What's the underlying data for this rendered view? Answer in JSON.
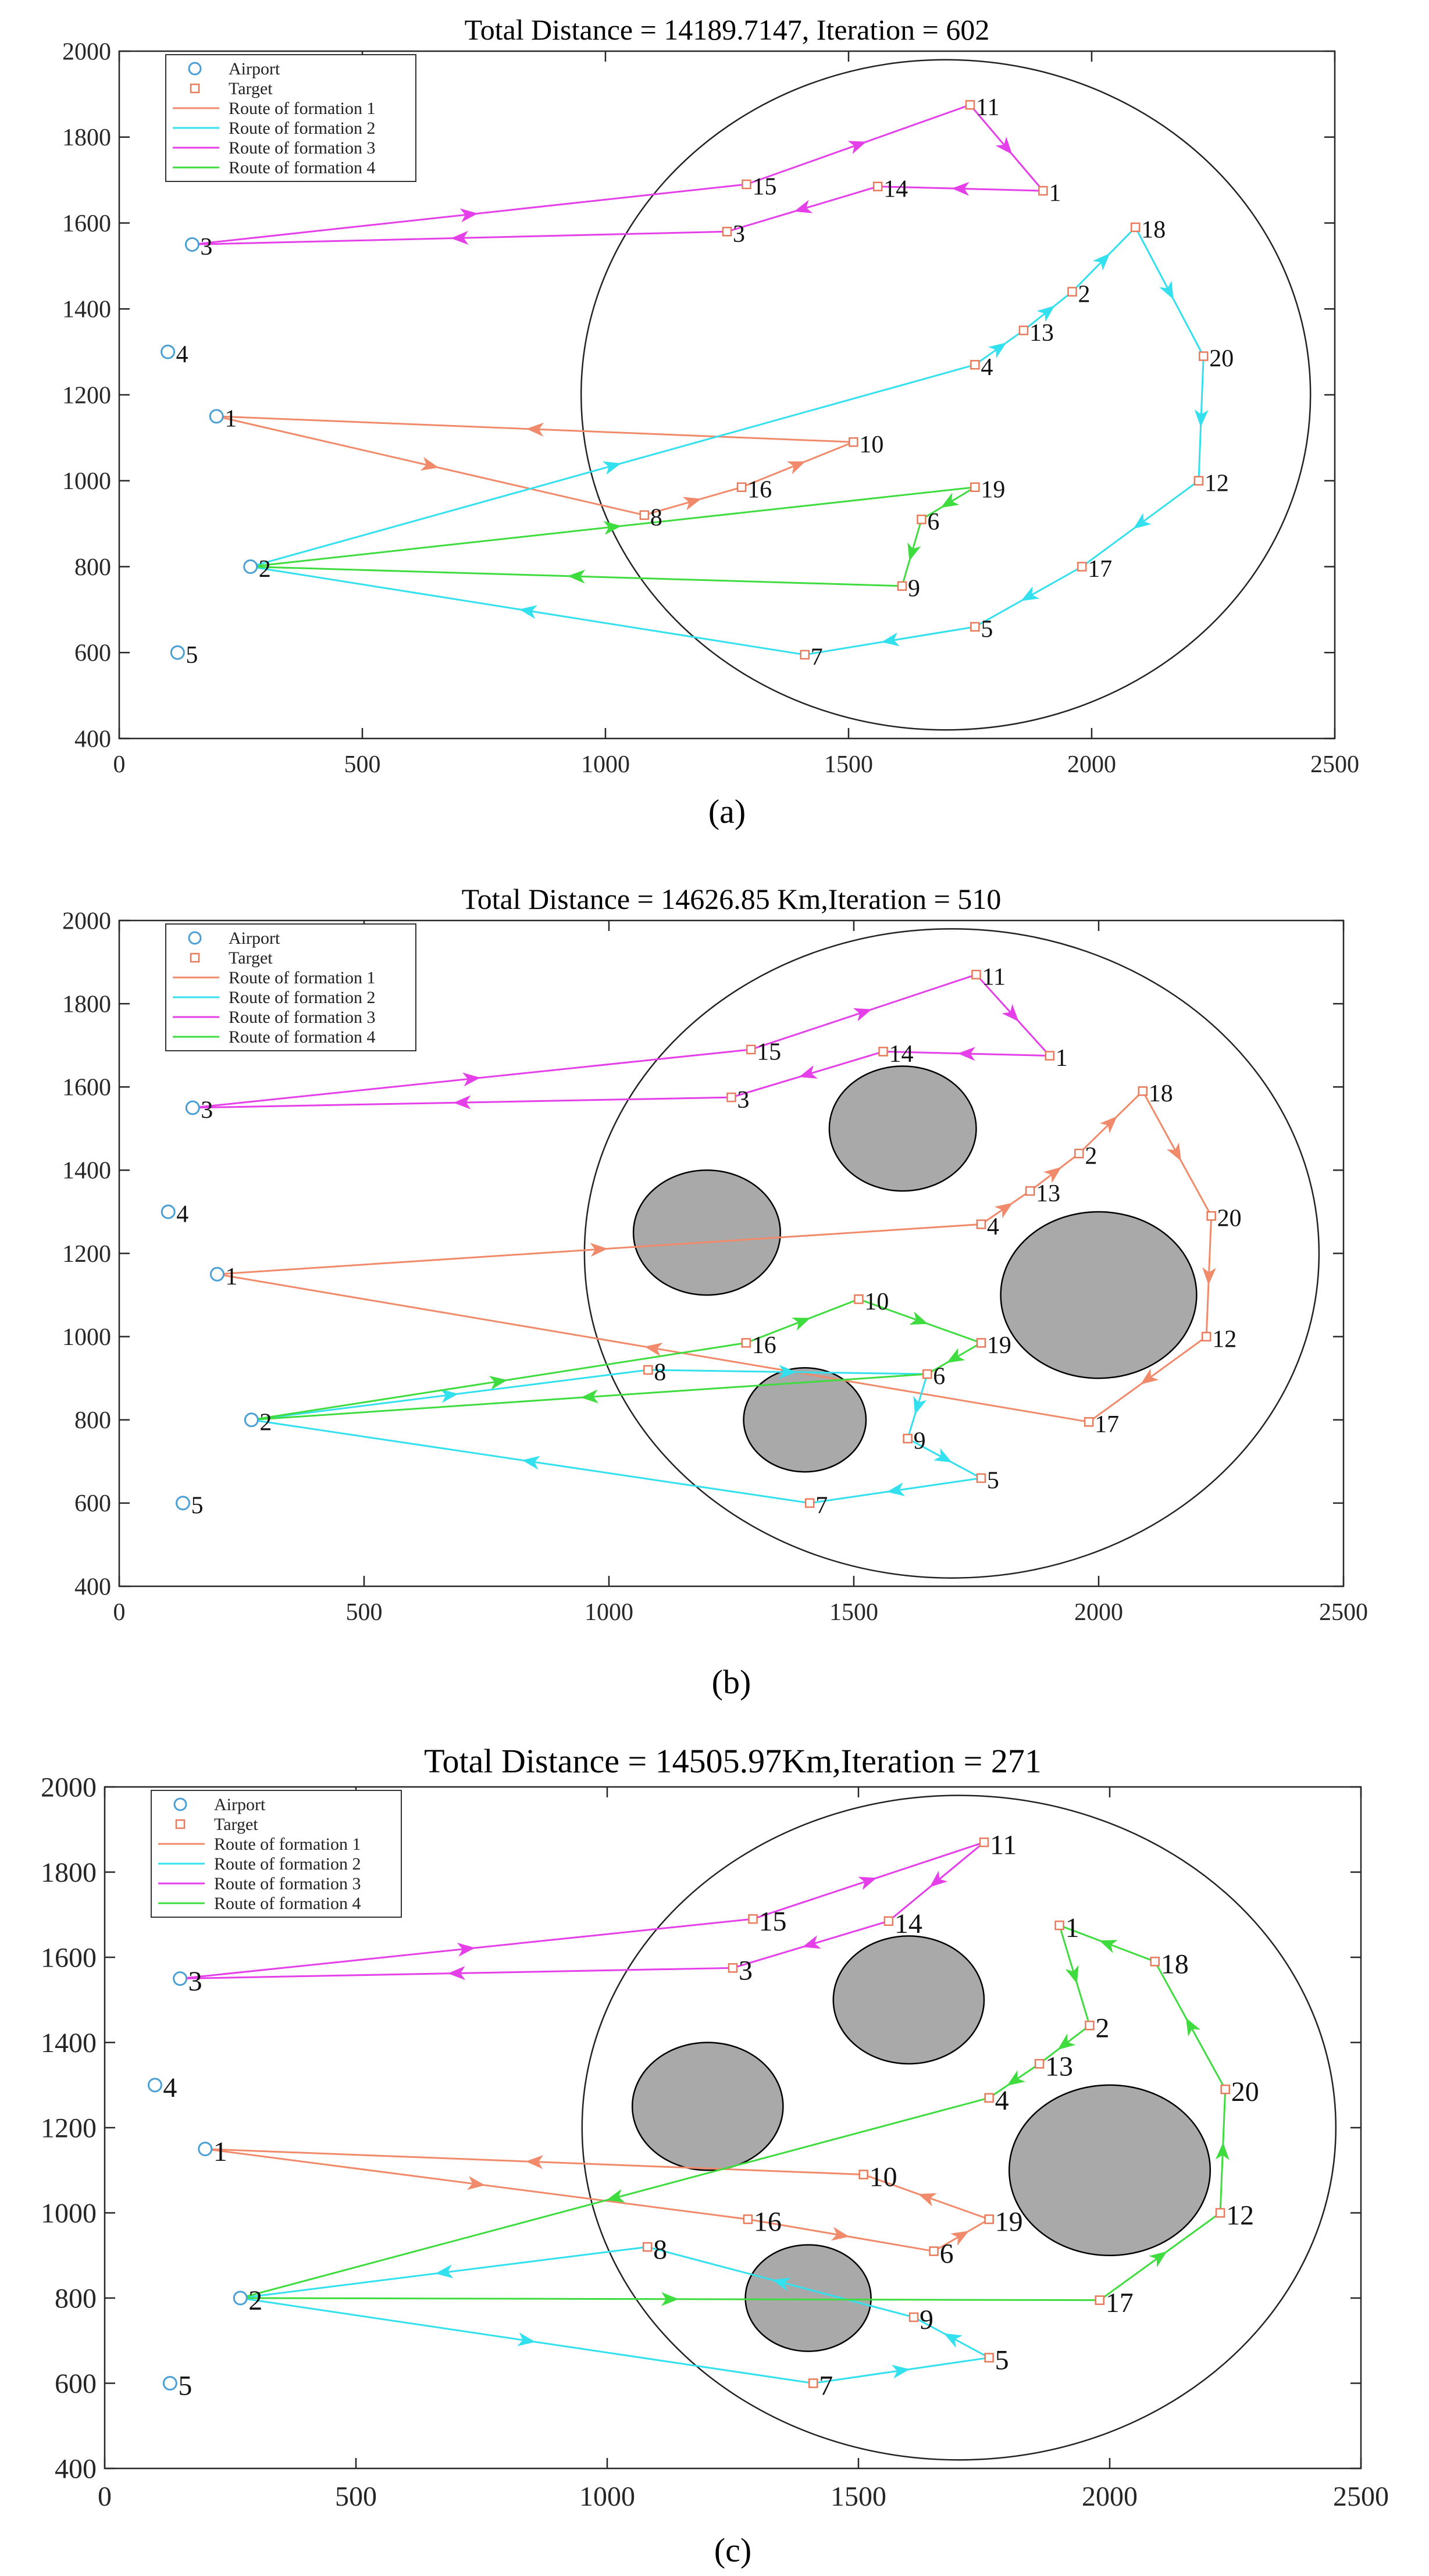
{
  "figure": {
    "legend_entries": [
      "Airport",
      "Target",
      "Route of formation 1",
      "Route of formation 2",
      "Route of formation 3",
      "Route of formation 4"
    ],
    "colors": {
      "airport": "#4a9fd4",
      "target": "#e8795a",
      "formation1": "#f08a6a",
      "formation2": "#33e0ee",
      "formation3": "#e43fe8",
      "formation4": "#3fdc3f",
      "obstacle": "#a9a9a9",
      "region": "#222222"
    }
  },
  "chart_data": [
    {
      "type": "scatter",
      "panel": "a",
      "caption": "(a)",
      "title": "Total Distance = 14189.7147, Iteration = 602",
      "xlim": [
        0,
        2500
      ],
      "ylim": [
        400,
        2000
      ],
      "xticks": [
        0,
        500,
        1000,
        1500,
        2000,
        2500
      ],
      "yticks": [
        400,
        600,
        800,
        1000,
        1200,
        1400,
        1600,
        1800,
        2000
      ],
      "legend_location": "top-left",
      "region": {
        "center": [
          1700,
          1200
        ],
        "rx": 750,
        "ry": 780
      },
      "obstacles": [],
      "airports": [
        {
          "id": "1",
          "x": 200,
          "y": 1150
        },
        {
          "id": "2",
          "x": 270,
          "y": 800
        },
        {
          "id": "3",
          "x": 150,
          "y": 1550
        },
        {
          "id": "4",
          "x": 100,
          "y": 1300
        },
        {
          "id": "5",
          "x": 120,
          "y": 600
        }
      ],
      "targets": [
        {
          "id": "1",
          "x": 1900,
          "y": 1675
        },
        {
          "id": "2",
          "x": 1960,
          "y": 1440
        },
        {
          "id": "3",
          "x": 1250,
          "y": 1580
        },
        {
          "id": "4",
          "x": 1760,
          "y": 1270
        },
        {
          "id": "5",
          "x": 1760,
          "y": 660
        },
        {
          "id": "6",
          "x": 1650,
          "y": 910
        },
        {
          "id": "7",
          "x": 1410,
          "y": 595
        },
        {
          "id": "8",
          "x": 1080,
          "y": 920
        },
        {
          "id": "9",
          "x": 1610,
          "y": 755
        },
        {
          "id": "10",
          "x": 1510,
          "y": 1090
        },
        {
          "id": "11",
          "x": 1750,
          "y": 1875
        },
        {
          "id": "12",
          "x": 2220,
          "y": 1000
        },
        {
          "id": "13",
          "x": 1860,
          "y": 1350
        },
        {
          "id": "14",
          "x": 1560,
          "y": 1685
        },
        {
          "id": "15",
          "x": 1290,
          "y": 1690
        },
        {
          "id": "16",
          "x": 1280,
          "y": 985
        },
        {
          "id": "17",
          "x": 1980,
          "y": 800
        },
        {
          "id": "18",
          "x": 2090,
          "y": 1590
        },
        {
          "id": "19",
          "x": 1760,
          "y": 985
        },
        {
          "id": "20",
          "x": 2230,
          "y": 1290
        }
      ],
      "routes": [
        {
          "name": "Route of formation 1",
          "formation": 1,
          "path": [
            "A1",
            "8",
            "16",
            "10",
            "A1"
          ]
        },
        {
          "name": "Route of formation 2",
          "formation": 2,
          "path": [
            "A2",
            "4",
            "13",
            "2",
            "18",
            "20",
            "12",
            "17",
            "5",
            "7",
            "A2"
          ]
        },
        {
          "name": "Route of formation 3",
          "formation": 3,
          "path": [
            "A3",
            "15",
            "11",
            "1",
            "14",
            "3",
            "A3"
          ]
        },
        {
          "name": "Route of formation 4",
          "formation": 4,
          "path": [
            "A2",
            "19",
            "6",
            "9",
            "A2"
          ]
        }
      ]
    },
    {
      "type": "scatter",
      "panel": "b",
      "caption": "(b)",
      "title": "Total Distance = 14626.85 Km,Iteration = 510",
      "xlim": [
        0,
        2500
      ],
      "ylim": [
        400,
        2000
      ],
      "xticks": [
        0,
        500,
        1000,
        1500,
        2000,
        2500
      ],
      "yticks": [
        400,
        600,
        800,
        1000,
        1200,
        1400,
        1600,
        1800,
        2000
      ],
      "legend_location": "top-left",
      "region": {
        "center": [
          1700,
          1200
        ],
        "rx": 750,
        "ry": 780
      },
      "obstacles": [
        {
          "center": [
            1200,
            1250
          ],
          "rx": 150,
          "ry": 150
        },
        {
          "center": [
            1600,
            1500
          ],
          "rx": 150,
          "ry": 150
        },
        {
          "center": [
            2000,
            1100
          ],
          "rx": 200,
          "ry": 200
        },
        {
          "center": [
            1400,
            800
          ],
          "rx": 125,
          "ry": 125
        }
      ],
      "airports": [
        {
          "id": "1",
          "x": 200,
          "y": 1150
        },
        {
          "id": "2",
          "x": 270,
          "y": 800
        },
        {
          "id": "3",
          "x": 150,
          "y": 1550
        },
        {
          "id": "4",
          "x": 100,
          "y": 1300
        },
        {
          "id": "5",
          "x": 130,
          "y": 600
        }
      ],
      "targets": [
        {
          "id": "1",
          "x": 1900,
          "y": 1675
        },
        {
          "id": "2",
          "x": 1960,
          "y": 1440
        },
        {
          "id": "3",
          "x": 1250,
          "y": 1575
        },
        {
          "id": "4",
          "x": 1760,
          "y": 1270
        },
        {
          "id": "5",
          "x": 1760,
          "y": 660
        },
        {
          "id": "6",
          "x": 1650,
          "y": 910
        },
        {
          "id": "7",
          "x": 1410,
          "y": 600
        },
        {
          "id": "8",
          "x": 1080,
          "y": 920
        },
        {
          "id": "9",
          "x": 1610,
          "y": 755
        },
        {
          "id": "10",
          "x": 1510,
          "y": 1090
        },
        {
          "id": "11",
          "x": 1750,
          "y": 1870
        },
        {
          "id": "12",
          "x": 2220,
          "y": 1000
        },
        {
          "id": "13",
          "x": 1860,
          "y": 1350
        },
        {
          "id": "14",
          "x": 1560,
          "y": 1685
        },
        {
          "id": "15",
          "x": 1290,
          "y": 1690
        },
        {
          "id": "16",
          "x": 1280,
          "y": 985
        },
        {
          "id": "17",
          "x": 1980,
          "y": 795
        },
        {
          "id": "18",
          "x": 2090,
          "y": 1590
        },
        {
          "id": "19",
          "x": 1760,
          "y": 985
        },
        {
          "id": "20",
          "x": 2230,
          "y": 1290
        }
      ],
      "routes": [
        {
          "name": "Route of formation 1",
          "formation": 1,
          "path": [
            "A1",
            "4",
            "13",
            "2",
            "18",
            "20",
            "12",
            "17",
            "A1"
          ]
        },
        {
          "name": "Route of formation 2",
          "formation": 2,
          "path": [
            "A2",
            "8",
            "6",
            "9",
            "5",
            "7",
            "A2"
          ]
        },
        {
          "name": "Route of formation 3",
          "formation": 3,
          "path": [
            "A3",
            "15",
            "11",
            "1",
            "14",
            "3",
            "A3"
          ]
        },
        {
          "name": "Route of formation 4",
          "formation": 4,
          "path": [
            "A2",
            "16",
            "10",
            "19",
            "6",
            "A2"
          ]
        }
      ]
    },
    {
      "type": "scatter",
      "panel": "c",
      "caption": "(c)",
      "title": "Total Distance = 14505.97Km,Iteration = 271",
      "xlim": [
        0,
        2500
      ],
      "ylim": [
        400,
        2000
      ],
      "xticks": [
        0,
        500,
        1000,
        1500,
        2000,
        2500
      ],
      "yticks": [
        400,
        600,
        800,
        1000,
        1200,
        1400,
        1600,
        1800,
        2000
      ],
      "legend_location": "top-left",
      "region": {
        "center": [
          1700,
          1200
        ],
        "rx": 750,
        "ry": 780
      },
      "obstacles": [
        {
          "center": [
            1200,
            1250
          ],
          "rx": 150,
          "ry": 150
        },
        {
          "center": [
            1600,
            1500
          ],
          "rx": 150,
          "ry": 150
        },
        {
          "center": [
            2000,
            1100
          ],
          "rx": 200,
          "ry": 200
        },
        {
          "center": [
            1400,
            800
          ],
          "rx": 125,
          "ry": 125
        }
      ],
      "airports": [
        {
          "id": "1",
          "x": 200,
          "y": 1150
        },
        {
          "id": "2",
          "x": 270,
          "y": 800
        },
        {
          "id": "3",
          "x": 150,
          "y": 1550
        },
        {
          "id": "4",
          "x": 100,
          "y": 1300
        },
        {
          "id": "5",
          "x": 130,
          "y": 600
        }
      ],
      "targets": [
        {
          "id": "1",
          "x": 1900,
          "y": 1675
        },
        {
          "id": "2",
          "x": 1960,
          "y": 1440
        },
        {
          "id": "3",
          "x": 1250,
          "y": 1575
        },
        {
          "id": "4",
          "x": 1760,
          "y": 1270
        },
        {
          "id": "5",
          "x": 1760,
          "y": 660
        },
        {
          "id": "6",
          "x": 1650,
          "y": 910
        },
        {
          "id": "7",
          "x": 1410,
          "y": 600
        },
        {
          "id": "8",
          "x": 1080,
          "y": 920
        },
        {
          "id": "9",
          "x": 1610,
          "y": 755
        },
        {
          "id": "10",
          "x": 1510,
          "y": 1090
        },
        {
          "id": "11",
          "x": 1750,
          "y": 1870
        },
        {
          "id": "12",
          "x": 2220,
          "y": 1000
        },
        {
          "id": "13",
          "x": 1860,
          "y": 1350
        },
        {
          "id": "14",
          "x": 1560,
          "y": 1685
        },
        {
          "id": "15",
          "x": 1290,
          "y": 1690
        },
        {
          "id": "16",
          "x": 1280,
          "y": 985
        },
        {
          "id": "17",
          "x": 1980,
          "y": 795
        },
        {
          "id": "18",
          "x": 2090,
          "y": 1590
        },
        {
          "id": "19",
          "x": 1760,
          "y": 985
        },
        {
          "id": "20",
          "x": 2230,
          "y": 1290
        }
      ],
      "routes": [
        {
          "name": "Route of formation 1",
          "formation": 1,
          "path": [
            "A1",
            "16",
            "6",
            "19",
            "10",
            "A1"
          ]
        },
        {
          "name": "Route of formation 2",
          "formation": 2,
          "path": [
            "A2",
            "7",
            "5",
            "9",
            "8",
            "A2"
          ]
        },
        {
          "name": "Route of formation 3",
          "formation": 3,
          "path": [
            "A3",
            "15",
            "11",
            "14",
            "3",
            "A3"
          ]
        },
        {
          "name": "Route of formation 4",
          "formation": 4,
          "path": [
            "A2",
            "17",
            "12",
            "20",
            "18",
            "1",
            "2",
            "13",
            "4",
            "A2"
          ]
        }
      ]
    }
  ]
}
